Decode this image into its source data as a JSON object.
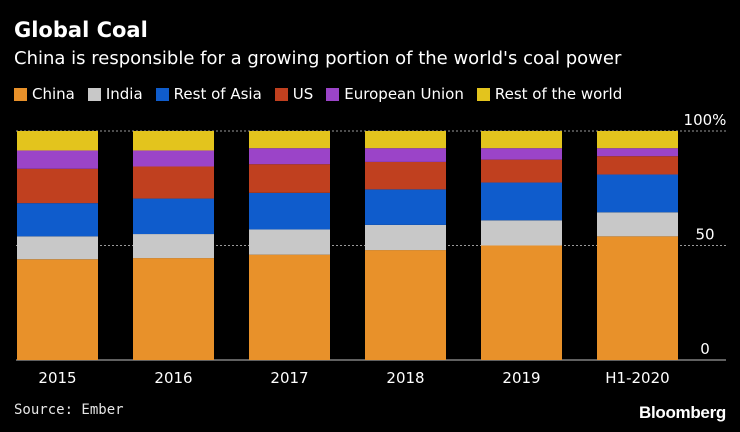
{
  "header": {
    "title": "Global Coal",
    "subtitle": "China is responsible for a growing portion of the world's coal power"
  },
  "footer": {
    "source": "Source: Ember",
    "brand": "Bloomberg"
  },
  "chart_data": {
    "type": "bar",
    "stacked": true,
    "title": "Global Coal",
    "subtitle": "China is responsible for a growing portion of the world's coal power",
    "xlabel": "",
    "ylabel": "",
    "ylim": [
      0,
      100
    ],
    "y_ticks": [
      0,
      50,
      100
    ],
    "y_tick_labels": [
      "0",
      "50",
      "100%"
    ],
    "y_axis_position": "right",
    "grid": true,
    "legend_position": "top",
    "categories": [
      "2015",
      "2016",
      "2017",
      "2018",
      "2019",
      "H1-2020"
    ],
    "series": [
      {
        "name": "China",
        "color": "#e8912a",
        "values": [
          44,
          44.5,
          46,
          48,
          50,
          54
        ]
      },
      {
        "name": "India",
        "color": "#c8c8c8",
        "values": [
          10,
          10.5,
          11,
          11,
          11,
          10.5
        ]
      },
      {
        "name": "Rest of Asia",
        "color": "#0f5ccc",
        "values": [
          14.5,
          15.5,
          16,
          15.5,
          16.5,
          16.5
        ]
      },
      {
        "name": "US",
        "color": "#c0401f",
        "values": [
          15,
          14,
          12.5,
          12,
          10,
          8
        ]
      },
      {
        "name": "European Union",
        "color": "#9b44c8",
        "values": [
          8,
          7,
          7,
          6,
          5,
          3.5
        ]
      },
      {
        "name": "Rest of the world",
        "color": "#e3c41d",
        "values": [
          8.5,
          8.5,
          7.5,
          7.5,
          7.5,
          7.5
        ]
      }
    ]
  }
}
